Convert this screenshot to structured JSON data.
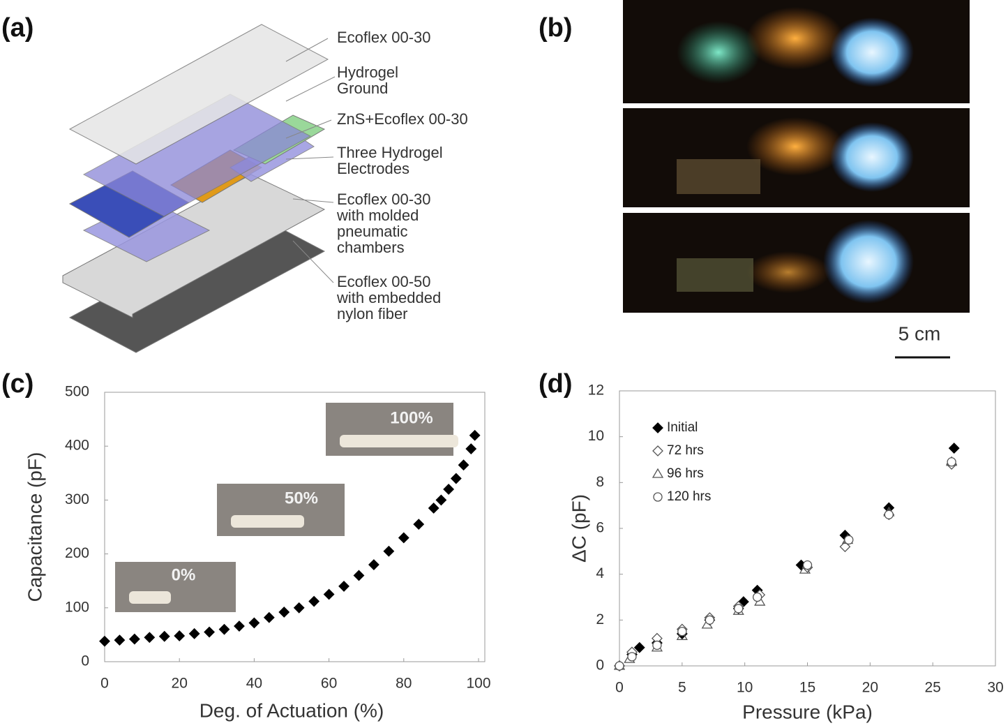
{
  "panels": [
    "(a)",
    "(b)",
    "(c)",
    "(d)"
  ],
  "diagram": {
    "labels": [
      [
        "Ecoflex 00-30"
      ],
      [
        "Hydrogel",
        "Ground"
      ],
      [
        "ZnS+Ecoflex 00-30"
      ],
      [
        "Three Hydrogel",
        "Electrodes"
      ],
      [
        "Ecoflex 00-30",
        "with molded",
        "pneumatic",
        "chambers"
      ],
      [
        "Ecoflex 00-50",
        "with embedded",
        "nylon fiber"
      ]
    ]
  },
  "photo": {
    "scale_bar": "5 cm"
  },
  "chart_data": [
    {
      "type": "scatter",
      "xlabel": "Deg. of Actuation (%)",
      "ylabel": "Capacitance (pF)",
      "xlim": [
        0,
        100
      ],
      "xticks": [
        0,
        20,
        40,
        60,
        80,
        100
      ],
      "ylim": [
        0,
        500
      ],
      "yticks": [
        0,
        100,
        200,
        300,
        400,
        500
      ],
      "color": "#000000",
      "marker": "diamond-filled",
      "x": [
        0,
        4,
        8,
        12,
        16,
        20,
        24,
        28,
        32,
        36,
        40,
        44,
        48,
        52,
        56,
        60,
        64,
        68,
        72,
        76,
        80,
        84,
        88,
        90,
        92,
        94,
        96,
        98,
        99
      ],
      "values": [
        38,
        40,
        42,
        45,
        47,
        48,
        52,
        55,
        60,
        66,
        72,
        82,
        92,
        100,
        112,
        125,
        140,
        160,
        180,
        205,
        230,
        255,
        285,
        300,
        320,
        340,
        365,
        395,
        420
      ],
      "annotations": [
        "0%",
        "50%",
        "100%"
      ]
    },
    {
      "type": "scatter",
      "xlabel": "Pressure (kPa)",
      "ylabel": "ΔC (pF)",
      "xlim": [
        0,
        30
      ],
      "xticks": [
        0,
        5,
        10,
        15,
        20,
        25,
        30
      ],
      "ylim": [
        0,
        12
      ],
      "yticks": [
        0,
        2,
        4,
        6,
        8,
        10,
        12
      ],
      "legend": "upper left",
      "series": [
        {
          "name": "Initial",
          "color": "#000000",
          "marker": "diamond-filled",
          "x": [
            0,
            1,
            1.6,
            3,
            5,
            7.2,
            9.5,
            9.9,
            11,
            14.5,
            18,
            21.5,
            26.7
          ],
          "values": [
            0,
            0.5,
            0.8,
            1.0,
            1.4,
            2.0,
            2.5,
            2.8,
            3.3,
            4.4,
            5.7,
            6.9,
            9.5
          ]
        },
        {
          "name": "72 hrs",
          "color": "#555555",
          "marker": "diamond",
          "x": [
            0,
            1,
            3,
            5,
            7.2,
            9.5,
            11.2,
            15,
            18,
            21.5,
            26.5
          ],
          "values": [
            0,
            0.6,
            1.2,
            1.6,
            2.1,
            2.6,
            3.1,
            4.3,
            5.2,
            6.6,
            8.8
          ]
        },
        {
          "name": "96 hrs",
          "color": "#555555",
          "marker": "triangle",
          "x": [
            0,
            0.8,
            3,
            5,
            7,
            9.5,
            11.2,
            14.8,
            18.2,
            21.5,
            26.5
          ],
          "values": [
            0,
            0.3,
            0.8,
            1.3,
            1.8,
            2.4,
            2.8,
            4.2,
            5.5,
            6.7,
            8.9
          ]
        },
        {
          "name": "120 hrs",
          "color": "#555555",
          "marker": "circle",
          "x": [
            0,
            1,
            3,
            5,
            7.2,
            9.5,
            11,
            15,
            18.3,
            21.5,
            26.5
          ],
          "values": [
            0,
            0.4,
            0.9,
            1.5,
            2.0,
            2.5,
            3.0,
            4.4,
            5.5,
            6.6,
            8.9
          ]
        }
      ]
    }
  ]
}
